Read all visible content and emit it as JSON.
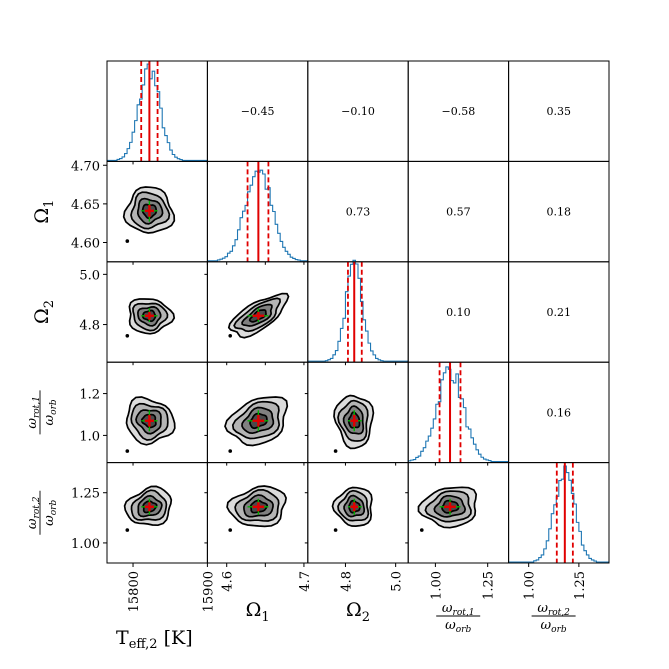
{
  "chart_data": {
    "type": "corner",
    "parameters": [
      {
        "key": "teff2",
        "label": "T_eff,2 [K]",
        "label_main": "T",
        "label_sub": "eff,2",
        "label_unit": " [K]",
        "range": [
          15765,
          15900
        ],
        "ticks": [
          15800,
          15900
        ],
        "tick_labels": [
          "15800",
          "15900"
        ],
        "median": 15822,
        "lower": 15811,
        "upper": 15833
      },
      {
        "key": "omega1",
        "label": "Ω1",
        "label_main": "Ω",
        "label_sub": "1",
        "range": [
          4.575,
          4.705
        ],
        "ticks": [
          4.6,
          4.65,
          4.7
        ],
        "tick_labels": [
          "4.60",
          "4.65",
          "4.70"
        ],
        "x_tick_labels": [
          "4.6",
          "",
          "4.7"
        ],
        "median": 4.641,
        "lower": 4.627,
        "upper": 4.654
      },
      {
        "key": "omega2",
        "label": "Ω2",
        "label_main": "Ω",
        "label_sub": "2",
        "range": [
          4.65,
          5.05
        ],
        "ticks": [
          4.8,
          5.0
        ],
        "tick_labels": [
          "4.8",
          "5.0"
        ],
        "median": 4.835,
        "lower": 4.81,
        "upper": 4.865
      },
      {
        "key": "wrot1",
        "label": "ω_rot,1 / ω_orb",
        "frac_num": "ω",
        "frac_num_sub": "rot,1",
        "frac_den": "ω",
        "frac_den_sub": "orb",
        "range": [
          0.87,
          1.35
        ],
        "ticks": [
          1.0,
          1.25
        ],
        "tick_labels": [
          "1.00",
          "1.25"
        ],
        "y_tick_labels": [
          "1.0",
          "1.2"
        ],
        "y_ticks": [
          1.0,
          1.2
        ],
        "median": 1.07,
        "lower": 1.02,
        "upper": 1.12
      },
      {
        "key": "wrot2",
        "label": "ω_rot,2 / ω_orb",
        "frac_num": "ω",
        "frac_num_sub": "rot,2",
        "frac_den": "ω",
        "frac_den_sub": "orb",
        "range": [
          0.9,
          1.4
        ],
        "ticks": [
          1.0,
          1.25
        ],
        "tick_labels": [
          "1.00",
          "1.25"
        ],
        "median": 1.18,
        "lower": 1.14,
        "upper": 1.22
      }
    ],
    "correlations": [
      {
        "row": 0,
        "col": 1,
        "value": "−0.45"
      },
      {
        "row": 0,
        "col": 2,
        "value": "−0.10"
      },
      {
        "row": 0,
        "col": 3,
        "value": "−0.58"
      },
      {
        "row": 0,
        "col": 4,
        "value": "0.35"
      },
      {
        "row": 1,
        "col": 2,
        "value": "0.73"
      },
      {
        "row": 1,
        "col": 3,
        "value": "0.57"
      },
      {
        "row": 1,
        "col": 4,
        "value": "0.18"
      },
      {
        "row": 2,
        "col": 3,
        "value": "0.10"
      },
      {
        "row": 2,
        "col": 4,
        "value": "0.21"
      },
      {
        "row": 3,
        "col": 4,
        "value": "0.16"
      }
    ],
    "colors": {
      "histogram": "#1f77b4",
      "median_line": "#e00000",
      "quantile_line": "#e00000",
      "cross_green": "#00b000",
      "cross_red": "#e00000",
      "contour": "#000000",
      "fill_levels": [
        "#dcdcdc",
        "#b4b4b4",
        "#808080",
        "#4a4a4a"
      ]
    }
  }
}
